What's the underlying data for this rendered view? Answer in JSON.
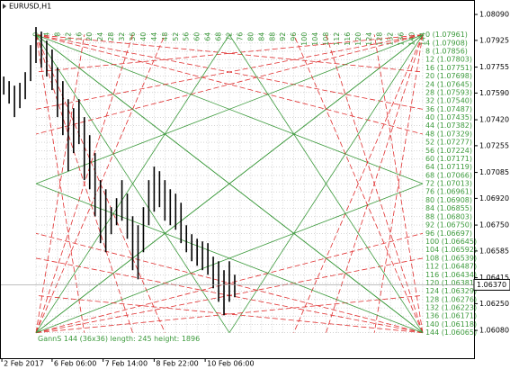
{
  "chart_data": {
    "type": "ohlc",
    "title": "EURUSD,H1",
    "xlim": [
      -13.4,
      163.1
    ],
    "ylim": [
      1.05903,
      1.08182
    ],
    "xticks": [
      {
        "value": -12.7,
        "label": "2 Feb 2017"
      },
      {
        "value": 6,
        "label": "6 Feb 06:00"
      },
      {
        "value": 25,
        "label": "7 Feb 14:00"
      },
      {
        "value": 44,
        "label": "8 Feb 22:00"
      },
      {
        "value": 63,
        "label": "10 Feb 06:00"
      }
    ],
    "yticks": [
      {
        "value": 1.0809,
        "label": "1.08090"
      },
      {
        "value": 1.07925,
        "label": "1.07925"
      },
      {
        "value": 1.07755,
        "label": "1.07755"
      },
      {
        "value": 1.0759,
        "label": "1.07590"
      },
      {
        "value": 1.0742,
        "label": "1.07420"
      },
      {
        "value": 1.07255,
        "label": "1.07255"
      },
      {
        "value": 1.07085,
        "label": "1.07085"
      },
      {
        "value": 1.0692,
        "label": "1.06920"
      },
      {
        "value": 1.0675,
        "label": "1.06750"
      },
      {
        "value": 1.06585,
        "label": "1.06585"
      },
      {
        "value": 1.06415,
        "label": "1.06415"
      },
      {
        "value": 1.0625,
        "label": "1.06250"
      },
      {
        "value": 1.0608,
        "label": "1.06080"
      }
    ],
    "current_price": {
      "value": 1.0637,
      "label": "1.06370"
    },
    "color": "#000000",
    "bars": {
      "x": [
        -12,
        -10,
        -8,
        -6,
        -4,
        -2,
        0,
        2,
        4,
        6,
        8,
        10,
        12,
        14,
        16,
        18,
        20,
        22,
        24,
        26,
        28,
        30,
        32,
        34,
        36,
        38,
        40,
        42,
        44,
        46,
        48,
        50,
        52,
        54,
        56,
        58,
        60,
        62,
        64,
        66,
        68,
        70,
        72,
        74
      ],
      "high": [
        1.07695,
        1.07666,
        1.07637,
        1.07655,
        1.07723,
        1.07895,
        1.0801,
        1.07981,
        1.07924,
        1.07867,
        1.07752,
        1.07666,
        1.07551,
        1.07494,
        1.07551,
        1.07437,
        1.07322,
        1.07208,
        1.07036,
        1.06978,
        1.06864,
        1.06921,
        1.07036,
        1.0695,
        1.06806,
        1.06749,
        1.06864,
        1.07036,
        1.07122,
        1.07093,
        1.07036,
        1.06978,
        1.0695,
        1.06892,
        1.06749,
        1.06692,
        1.06663,
        1.06646,
        1.06635,
        1.06549,
        1.0652,
        1.06463,
        1.0652,
        1.06434
      ],
      "low": [
        1.0758,
        1.07523,
        1.07437,
        1.07494,
        1.07551,
        1.07666,
        1.07781,
        1.07752,
        1.07695,
        1.07609,
        1.07437,
        1.07322,
        1.07093,
        1.07208,
        1.07265,
        1.07036,
        1.06978,
        1.06806,
        1.06635,
        1.06577,
        1.06692,
        1.06749,
        1.06778,
        1.06663,
        1.06463,
        1.06405,
        1.06577,
        1.06749,
        1.06835,
        1.06864,
        1.06778,
        1.06749,
        1.0672,
        1.06635,
        1.06577,
        1.0652,
        1.06491,
        1.06463,
        1.06434,
        1.06348,
        1.06262,
        1.06176,
        1.06262,
        1.06291
      ]
    },
    "gann": {
      "color": "#3c9a3c",
      "fan_color": "#e03030",
      "grid": true,
      "info": "GannS 144 (36x36)  length: 245 height: 1896",
      "columns": [
        0,
        4,
        8,
        12,
        16,
        20,
        24,
        28,
        32,
        36,
        40,
        44,
        48,
        52,
        56,
        60,
        64,
        68,
        72,
        76,
        80,
        84,
        88,
        92,
        96,
        100,
        104,
        108,
        112,
        116,
        120,
        124,
        128,
        132,
        136,
        140,
        144
      ],
      "levels": [
        {
          "value": 1.07961,
          "label": "0 (1.07961)"
        },
        {
          "value": 1.07908,
          "label": "4 (1.07908)"
        },
        {
          "value": 1.07856,
          "label": "8 (1.07856)"
        },
        {
          "value": 1.07803,
          "label": "12 (1.07803)"
        },
        {
          "value": 1.07751,
          "label": "16 (1.07751)"
        },
        {
          "value": 1.07698,
          "label": "20 (1.07698)"
        },
        {
          "value": 1.07645,
          "label": "24 (1.07645)"
        },
        {
          "value": 1.07593,
          "label": "28 (1.07593)"
        },
        {
          "value": 1.0754,
          "label": "32 (1.07540)"
        },
        {
          "value": 1.07487,
          "label": "36 (1.07487)"
        },
        {
          "value": 1.07435,
          "label": "40 (1.07435)"
        },
        {
          "value": 1.07382,
          "label": "44 (1.07382)"
        },
        {
          "value": 1.07329,
          "label": "48 (1.07329)"
        },
        {
          "value": 1.07277,
          "label": "52 (1.07277)"
        },
        {
          "value": 1.07224,
          "label": "56 (1.07224)"
        },
        {
          "value": 1.07171,
          "label": "60 (1.07171)"
        },
        {
          "value": 1.07119,
          "label": "64 (1.07119)"
        },
        {
          "value": 1.07066,
          "label": "68 (1.07066)"
        },
        {
          "value": 1.07013,
          "label": "72 (1.07013)"
        },
        {
          "value": 1.06961,
          "label": "76 (1.06961)"
        },
        {
          "value": 1.06908,
          "label": "80 (1.06908)"
        },
        {
          "value": 1.06855,
          "label": "84 (1.06855)"
        },
        {
          "value": 1.06803,
          "label": "88 (1.06803)"
        },
        {
          "value": 1.0675,
          "label": "92 (1.06750)"
        },
        {
          "value": 1.06697,
          "label": "96 (1.06697)"
        },
        {
          "value": 1.06645,
          "label": "100 (1.06645)"
        },
        {
          "value": 1.06592,
          "label": "104 (1.06592)"
        },
        {
          "value": 1.06539,
          "label": "108 (1.06539)"
        },
        {
          "value": 1.06487,
          "label": "112 (1.06487)"
        },
        {
          "value": 1.06434,
          "label": "116 (1.06434)"
        },
        {
          "value": 1.06381,
          "label": "120 (1.06381)"
        },
        {
          "value": 1.06329,
          "label": "124 (1.06329)"
        },
        {
          "value": 1.06276,
          "label": "128 (1.06276)"
        },
        {
          "value": 1.06223,
          "label": "132 (1.06223)"
        },
        {
          "value": 1.06171,
          "label": "136 (1.06171)"
        },
        {
          "value": 1.06118,
          "label": "140 (1.06118)"
        },
        {
          "value": 1.06065,
          "label": "144 (1.06065)"
        }
      ]
    }
  }
}
